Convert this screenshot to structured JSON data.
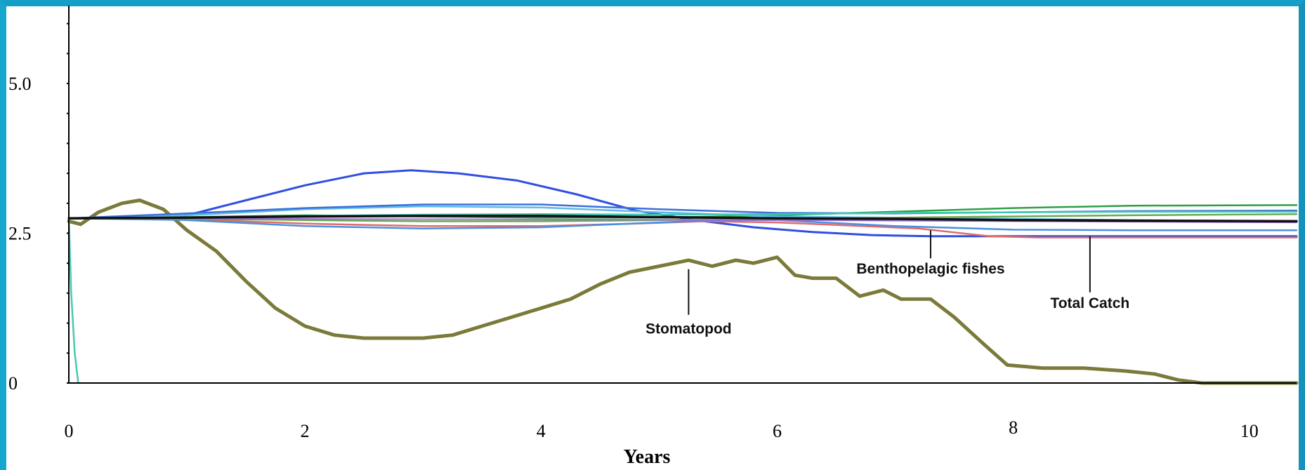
{
  "chart_data": {
    "type": "line",
    "title": "",
    "xlabel": "Years",
    "ylabel": "",
    "xlim": [
      0,
      10.4
    ],
    "ylim": [
      0,
      6.3
    ],
    "x_ticks": [
      "0",
      "2",
      "4",
      "6",
      "8",
      "10"
    ],
    "y_ticks": [
      "0",
      "2.5",
      "5.0"
    ],
    "grid": false,
    "legend": "none",
    "annotations": [
      {
        "text": "Stomatopod",
        "x": 5.25,
        "y": 1.9
      },
      {
        "text": "Benthopelagic fishes",
        "x": 7.3,
        "y": 2.55
      },
      {
        "text": "Total Catch",
        "x": 8.65,
        "y": 2.45
      }
    ],
    "series": [
      {
        "name": "Stomatopod",
        "color": "#7b7a3a",
        "width": 5,
        "x": [
          0,
          0.1,
          0.25,
          0.45,
          0.6,
          0.8,
          1.0,
          1.25,
          1.5,
          1.75,
          2.0,
          2.25,
          2.5,
          2.75,
          3.0,
          3.25,
          3.5,
          3.75,
          4.0,
          4.25,
          4.5,
          4.75,
          5.0,
          5.25,
          5.45,
          5.65,
          5.8,
          6.0,
          6.15,
          6.3,
          6.5,
          6.7,
          6.9,
          7.05,
          7.3,
          7.5,
          7.75,
          7.95,
          8.25,
          8.6,
          8.95,
          9.2,
          9.4,
          9.6,
          9.8,
          10.4
        ],
        "y": [
          2.7,
          2.65,
          2.85,
          3.0,
          3.05,
          2.9,
          2.55,
          2.2,
          1.7,
          1.25,
          0.95,
          0.8,
          0.75,
          0.75,
          0.75,
          0.8,
          0.95,
          1.1,
          1.25,
          1.4,
          1.65,
          1.85,
          1.95,
          2.05,
          1.95,
          2.05,
          2.0,
          2.1,
          1.8,
          1.75,
          1.75,
          1.45,
          1.55,
          1.4,
          1.4,
          1.1,
          0.65,
          0.3,
          0.25,
          0.25,
          0.2,
          0.15,
          0.05,
          0.0,
          0.0,
          0.0
        ]
      },
      {
        "name": "",
        "color": "#2f4fe0",
        "width": 3,
        "x": [
          0,
          0.5,
          1.0,
          1.5,
          2.0,
          2.5,
          2.9,
          3.3,
          3.8,
          4.3,
          4.8,
          5.3,
          5.8,
          6.3,
          6.8,
          7.3,
          7.8,
          8.3,
          8.8,
          9.3,
          9.8,
          10.4
        ],
        "y": [
          2.75,
          2.75,
          2.8,
          3.05,
          3.3,
          3.5,
          3.55,
          3.5,
          3.38,
          3.15,
          2.88,
          2.72,
          2.6,
          2.52,
          2.47,
          2.45,
          2.45,
          2.45,
          2.45,
          2.45,
          2.45,
          2.45
        ]
      },
      {
        "name": "Total Catch",
        "color": "#e06b6b",
        "width": 2.5,
        "x": [
          0,
          0.7,
          1.2,
          2.0,
          3.0,
          4.0,
          4.8,
          5.4,
          6.0,
          6.6,
          7.2,
          7.8,
          8.2,
          8.8,
          9.4,
          10.4
        ],
        "y": [
          2.75,
          2.75,
          2.72,
          2.66,
          2.62,
          2.62,
          2.66,
          2.7,
          2.68,
          2.63,
          2.58,
          2.45,
          2.43,
          2.43,
          2.43,
          2.43
        ]
      },
      {
        "name": "Benthopelagic fishes",
        "color": "#4b8fe0",
        "width": 2.5,
        "x": [
          0,
          1.0,
          2.0,
          3.0,
          4.0,
          5.0,
          5.5,
          6.0,
          7.0,
          8.0,
          9.0,
          10.4
        ],
        "y": [
          2.75,
          2.72,
          2.62,
          2.58,
          2.6,
          2.68,
          2.72,
          2.72,
          2.62,
          2.56,
          2.55,
          2.55
        ]
      },
      {
        "name": "",
        "color": "#2e9f45",
        "width": 2.5,
        "x": [
          0,
          1.0,
          2.0,
          3.0,
          4.0,
          5.0,
          6.0,
          7.0,
          8.0,
          9.0,
          10.4
        ],
        "y": [
          2.75,
          2.77,
          2.8,
          2.78,
          2.76,
          2.76,
          2.8,
          2.86,
          2.92,
          2.96,
          2.97
        ]
      },
      {
        "name": "",
        "color": "#5fb9e8",
        "width": 2.5,
        "x": [
          0,
          1.0,
          2.0,
          3.0,
          4.0,
          5.0,
          6.0,
          7.0,
          8.0,
          9.0,
          10.4
        ],
        "y": [
          2.75,
          2.8,
          2.9,
          2.95,
          2.93,
          2.85,
          2.78,
          2.76,
          2.74,
          2.72,
          2.7
        ]
      },
      {
        "name": "",
        "color": "#3a70d8",
        "width": 2.5,
        "x": [
          0,
          1.0,
          2.0,
          3.0,
          4.0,
          5.0,
          6.0,
          7.0,
          8.0,
          9.0,
          10.4
        ],
        "y": [
          2.75,
          2.83,
          2.92,
          2.98,
          2.98,
          2.9,
          2.84,
          2.83,
          2.85,
          2.87,
          2.88
        ]
      },
      {
        "name": "",
        "color": "#3fc7b0",
        "width": 2.5,
        "x": [
          0,
          1.0,
          2.0,
          3.0,
          4.0,
          5.0,
          6.0,
          7.0,
          8.0,
          9.0,
          10.4
        ],
        "y": [
          2.75,
          2.76,
          2.79,
          2.81,
          2.82,
          2.81,
          2.82,
          2.84,
          2.85,
          2.86,
          2.86
        ]
      },
      {
        "name": "",
        "color": "#6aa84f",
        "width": 2.5,
        "x": [
          0,
          1.0,
          2.0,
          3.0,
          4.0,
          5.0,
          6.0,
          7.0,
          8.0,
          9.0,
          10.4
        ],
        "y": [
          2.75,
          2.74,
          2.72,
          2.7,
          2.7,
          2.72,
          2.74,
          2.76,
          2.78,
          2.8,
          2.82
        ]
      },
      {
        "name": "",
        "color": "#9a6fd8",
        "width": 2,
        "x": [
          0,
          2.0,
          4.0,
          6.0,
          8.0,
          10.4
        ],
        "y": [
          2.75,
          2.74,
          2.73,
          2.72,
          2.7,
          2.68
        ]
      },
      {
        "name": "",
        "color": "#111111",
        "width": 3.5,
        "x": [
          0,
          1.0,
          2.0,
          3.0,
          4.0,
          5.0,
          6.0,
          7.0,
          8.0,
          9.0,
          10.4
        ],
        "y": [
          2.75,
          2.76,
          2.78,
          2.79,
          2.79,
          2.77,
          2.75,
          2.74,
          2.72,
          2.71,
          2.7
        ]
      },
      {
        "name": "",
        "color": "#48c9b0",
        "width": 2.5,
        "x": [
          0,
          0.02,
          0.05,
          0.08
        ],
        "y": [
          2.75,
          1.5,
          0.5,
          0.0
        ]
      }
    ]
  }
}
